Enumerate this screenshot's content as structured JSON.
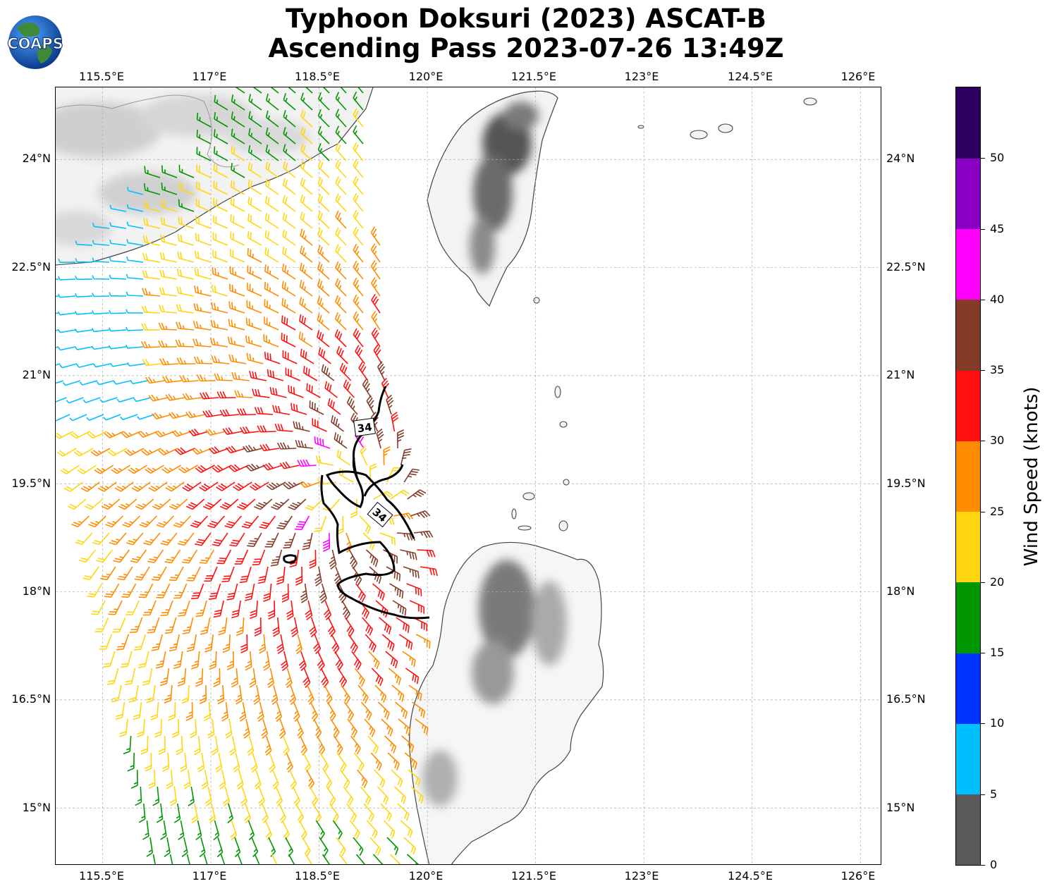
{
  "title_line1": "Typhoon Doksuri (2023) ASCAT-B",
  "title_line2": "Ascending Pass 2023-07-26 13:49Z",
  "logo_text": "COAPS",
  "lon_ticks": [
    "115.5°E",
    "117°E",
    "118.5°E",
    "120°E",
    "121.5°E",
    "123°E",
    "124.5°E",
    "126°E"
  ],
  "lat_ticks": [
    "24°N",
    "22.5°N",
    "21°N",
    "19.5°N",
    "18°N",
    "16.5°N",
    "15°N"
  ],
  "colorbar": {
    "label": "Wind Speed (knots)",
    "ticks": [
      "0",
      "5",
      "10",
      "15",
      "20",
      "25",
      "30",
      "35",
      "40",
      "45",
      "50"
    ],
    "colors": [
      "#595959",
      "#00bfff",
      "#0033ff",
      "#009600",
      "#ffd60f",
      "#ff8c00",
      "#ff0f0f",
      "#843c29",
      "#ff00ff",
      "#8a00c2",
      "#2d0060"
    ]
  },
  "map_extent": {
    "lon": [
      114.85,
      126.3
    ],
    "lat": [
      14.2,
      25.0
    ]
  },
  "contour_label": "34",
  "contour_labels": [
    {
      "text": "34",
      "lon": 119.13,
      "lat": 20.25,
      "angle": -8
    },
    {
      "text": "34",
      "lon": 119.37,
      "lat": 19.08,
      "angle": 40
    }
  ],
  "colors": {
    "contour": "#000000",
    "coast": "#444444",
    "terrain_light": "#e6e6e6",
    "terrain_dark": "#6e6e6e",
    "grid": "#aaaaaa"
  }
}
